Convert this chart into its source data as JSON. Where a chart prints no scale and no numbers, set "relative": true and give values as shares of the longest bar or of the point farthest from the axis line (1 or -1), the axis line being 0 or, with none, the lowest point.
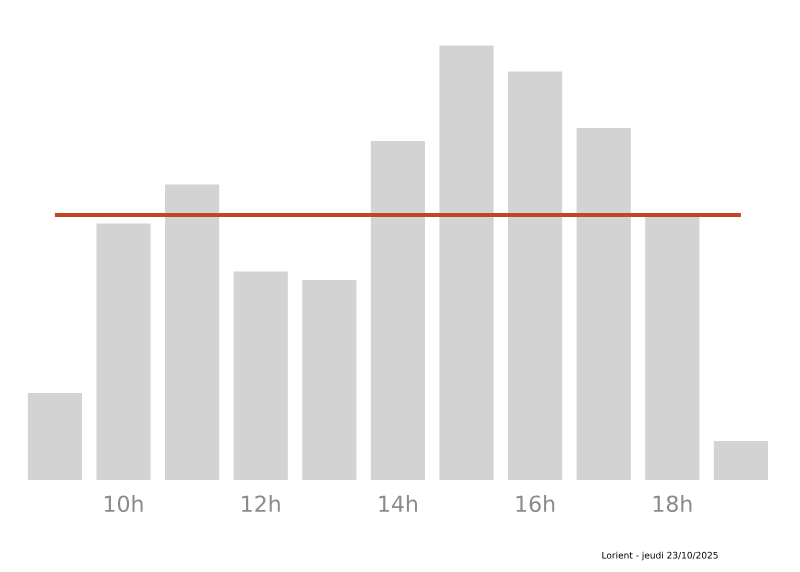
{
  "chart_data": {
    "type": "bar",
    "relative": true,
    "color": "#d4d3d4",
    "categories": [
      null,
      "10h",
      null,
      "12h",
      null,
      "14h",
      null,
      "16h",
      null,
      "18h",
      null
    ],
    "values": [
      0.2,
      0.59,
      0.68,
      0.48,
      0.46,
      0.78,
      1,
      0.94,
      0.81,
      0.61,
      0.09
    ],
    "ref_lines": [
      {
        "axis": "y",
        "value": 0.61,
        "color": "#c0481f"
      }
    ],
    "annotations": [
      "Lorient - jeudi 23/10/2025"
    ]
  }
}
